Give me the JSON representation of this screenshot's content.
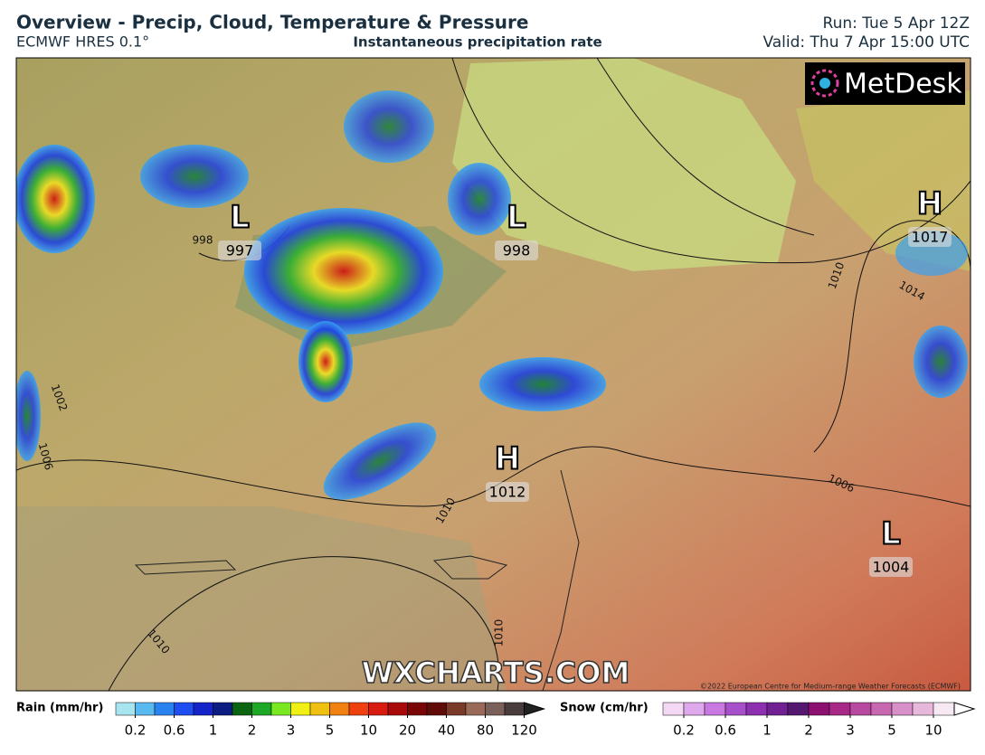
{
  "header": {
    "title": "Overview - Precip, Cloud, Temperature & Pressure",
    "model": "ECMWF HRES 0.1°",
    "subtitle": "Instantaneous precipitation rate",
    "run": "Run: Tue 5 Apr 12Z",
    "valid": "Valid: Thu 7 Apr 15:00 UTC"
  },
  "map": {
    "pressure_centers": [
      {
        "type": "L",
        "value": "997"
      },
      {
        "type": "L",
        "value": "998"
      },
      {
        "type": "H",
        "value": "1017"
      },
      {
        "type": "H",
        "value": "1012"
      },
      {
        "type": "L",
        "value": "1004"
      }
    ],
    "isobar_labels": [
      "998",
      "1002",
      "1006",
      "1010",
      "1010",
      "1010",
      "1010",
      "1014",
      "1006"
    ],
    "watermark": "WXCHARTS.COM",
    "brand": "MetDesk",
    "copyright": "©2022 European Centre for Medium-range Weather Forecasts (ECMWF)"
  },
  "legend": {
    "rain": {
      "label": "Rain (mm/hr)",
      "ticks": [
        "0.2",
        "0.6",
        "1",
        "2",
        "3",
        "5",
        "10",
        "20",
        "40",
        "80",
        "120"
      ],
      "colors": [
        "#a8e4f0",
        "#58b8f0",
        "#2a82f0",
        "#1e4ef0",
        "#1424c8",
        "#0c1c80",
        "#0a6410",
        "#1ea828",
        "#7ae822",
        "#f0f014",
        "#f0c010",
        "#f08010",
        "#f04010",
        "#d81a10",
        "#a80a0a",
        "#780606",
        "#600a0a",
        "#7a3a2a",
        "#9a6a58",
        "#7a6058",
        "#483c3c"
      ]
    },
    "snow": {
      "label": "Snow (cm/hr)",
      "ticks": [
        "0.2",
        "0.6",
        "1",
        "2",
        "3",
        "5",
        "10"
      ],
      "colors": [
        "#f4d8f4",
        "#e0a8ec",
        "#c878e0",
        "#a850cc",
        "#8c30b0",
        "#702090",
        "#541870",
        "#8c1070",
        "#a82888",
        "#b848a0",
        "#c868b0",
        "#d890c8",
        "#e8b8dc",
        "#f8e8f4"
      ]
    }
  }
}
